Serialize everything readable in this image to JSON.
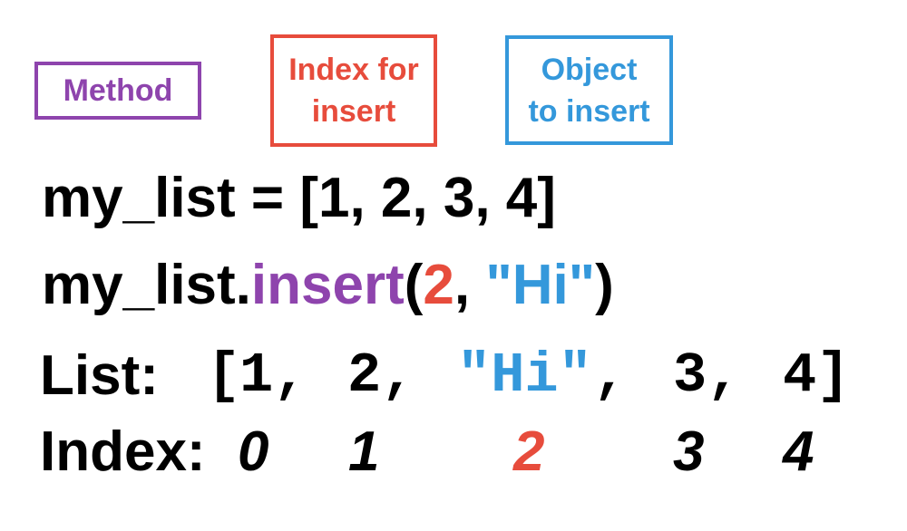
{
  "labels": {
    "method": "Method",
    "index_for_insert": [
      "Index for",
      "insert"
    ],
    "object_to_insert": [
      "Object",
      "to insert"
    ]
  },
  "code": {
    "line1": "my_list = [1, 2, 3, 4]",
    "line2": {
      "obj": "my_list.",
      "method": "insert",
      "open_paren": "(",
      "index_arg": "2",
      "comma": ", ",
      "object_arg": "\"Hi\"",
      "close_paren": ")"
    }
  },
  "result": {
    "list_label": "List:",
    "open_bracket": "[",
    "items": [
      "1,",
      "2,",
      "\"Hi\"",
      ",",
      "3,",
      "4"
    ],
    "close_bracket": "]",
    "index_label": "Index:",
    "indices": [
      "0",
      "1",
      "2",
      "3",
      "4"
    ]
  },
  "colors": {
    "method": "#8e44ad",
    "index": "#e74c3c",
    "object": "#3498db",
    "text": "#000000"
  }
}
